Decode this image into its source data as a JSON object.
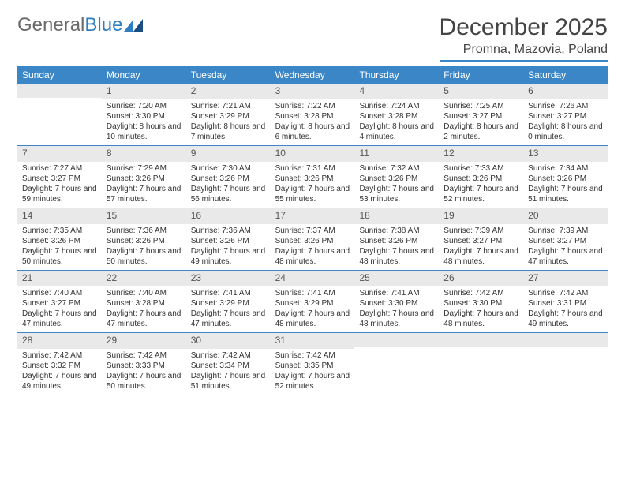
{
  "logo": {
    "text1": "General",
    "text2": "Blue"
  },
  "title": "December 2025",
  "location": "Promna, Mazovia, Poland",
  "colors": {
    "header_bg": "#3a86c7",
    "header_text": "#ffffff",
    "daynum_bg": "#e9e9e9",
    "text": "#333333",
    "rule": "#3a86c7"
  },
  "day_names": [
    "Sunday",
    "Monday",
    "Tuesday",
    "Wednesday",
    "Thursday",
    "Friday",
    "Saturday"
  ],
  "weeks": [
    [
      {
        "day": "",
        "sunrise": "",
        "sunset": "",
        "daylight": ""
      },
      {
        "day": "1",
        "sunrise": "Sunrise: 7:20 AM",
        "sunset": "Sunset: 3:30 PM",
        "daylight": "Daylight: 8 hours and 10 minutes."
      },
      {
        "day": "2",
        "sunrise": "Sunrise: 7:21 AM",
        "sunset": "Sunset: 3:29 PM",
        "daylight": "Daylight: 8 hours and 7 minutes."
      },
      {
        "day": "3",
        "sunrise": "Sunrise: 7:22 AM",
        "sunset": "Sunset: 3:28 PM",
        "daylight": "Daylight: 8 hours and 6 minutes."
      },
      {
        "day": "4",
        "sunrise": "Sunrise: 7:24 AM",
        "sunset": "Sunset: 3:28 PM",
        "daylight": "Daylight: 8 hours and 4 minutes."
      },
      {
        "day": "5",
        "sunrise": "Sunrise: 7:25 AM",
        "sunset": "Sunset: 3:27 PM",
        "daylight": "Daylight: 8 hours and 2 minutes."
      },
      {
        "day": "6",
        "sunrise": "Sunrise: 7:26 AM",
        "sunset": "Sunset: 3:27 PM",
        "daylight": "Daylight: 8 hours and 0 minutes."
      }
    ],
    [
      {
        "day": "7",
        "sunrise": "Sunrise: 7:27 AM",
        "sunset": "Sunset: 3:27 PM",
        "daylight": "Daylight: 7 hours and 59 minutes."
      },
      {
        "day": "8",
        "sunrise": "Sunrise: 7:29 AM",
        "sunset": "Sunset: 3:26 PM",
        "daylight": "Daylight: 7 hours and 57 minutes."
      },
      {
        "day": "9",
        "sunrise": "Sunrise: 7:30 AM",
        "sunset": "Sunset: 3:26 PM",
        "daylight": "Daylight: 7 hours and 56 minutes."
      },
      {
        "day": "10",
        "sunrise": "Sunrise: 7:31 AM",
        "sunset": "Sunset: 3:26 PM",
        "daylight": "Daylight: 7 hours and 55 minutes."
      },
      {
        "day": "11",
        "sunrise": "Sunrise: 7:32 AM",
        "sunset": "Sunset: 3:26 PM",
        "daylight": "Daylight: 7 hours and 53 minutes."
      },
      {
        "day": "12",
        "sunrise": "Sunrise: 7:33 AM",
        "sunset": "Sunset: 3:26 PM",
        "daylight": "Daylight: 7 hours and 52 minutes."
      },
      {
        "day": "13",
        "sunrise": "Sunrise: 7:34 AM",
        "sunset": "Sunset: 3:26 PM",
        "daylight": "Daylight: 7 hours and 51 minutes."
      }
    ],
    [
      {
        "day": "14",
        "sunrise": "Sunrise: 7:35 AM",
        "sunset": "Sunset: 3:26 PM",
        "daylight": "Daylight: 7 hours and 50 minutes."
      },
      {
        "day": "15",
        "sunrise": "Sunrise: 7:36 AM",
        "sunset": "Sunset: 3:26 PM",
        "daylight": "Daylight: 7 hours and 50 minutes."
      },
      {
        "day": "16",
        "sunrise": "Sunrise: 7:36 AM",
        "sunset": "Sunset: 3:26 PM",
        "daylight": "Daylight: 7 hours and 49 minutes."
      },
      {
        "day": "17",
        "sunrise": "Sunrise: 7:37 AM",
        "sunset": "Sunset: 3:26 PM",
        "daylight": "Daylight: 7 hours and 48 minutes."
      },
      {
        "day": "18",
        "sunrise": "Sunrise: 7:38 AM",
        "sunset": "Sunset: 3:26 PM",
        "daylight": "Daylight: 7 hours and 48 minutes."
      },
      {
        "day": "19",
        "sunrise": "Sunrise: 7:39 AM",
        "sunset": "Sunset: 3:27 PM",
        "daylight": "Daylight: 7 hours and 48 minutes."
      },
      {
        "day": "20",
        "sunrise": "Sunrise: 7:39 AM",
        "sunset": "Sunset: 3:27 PM",
        "daylight": "Daylight: 7 hours and 47 minutes."
      }
    ],
    [
      {
        "day": "21",
        "sunrise": "Sunrise: 7:40 AM",
        "sunset": "Sunset: 3:27 PM",
        "daylight": "Daylight: 7 hours and 47 minutes."
      },
      {
        "day": "22",
        "sunrise": "Sunrise: 7:40 AM",
        "sunset": "Sunset: 3:28 PM",
        "daylight": "Daylight: 7 hours and 47 minutes."
      },
      {
        "day": "23",
        "sunrise": "Sunrise: 7:41 AM",
        "sunset": "Sunset: 3:29 PM",
        "daylight": "Daylight: 7 hours and 47 minutes."
      },
      {
        "day": "24",
        "sunrise": "Sunrise: 7:41 AM",
        "sunset": "Sunset: 3:29 PM",
        "daylight": "Daylight: 7 hours and 48 minutes."
      },
      {
        "day": "25",
        "sunrise": "Sunrise: 7:41 AM",
        "sunset": "Sunset: 3:30 PM",
        "daylight": "Daylight: 7 hours and 48 minutes."
      },
      {
        "day": "26",
        "sunrise": "Sunrise: 7:42 AM",
        "sunset": "Sunset: 3:30 PM",
        "daylight": "Daylight: 7 hours and 48 minutes."
      },
      {
        "day": "27",
        "sunrise": "Sunrise: 7:42 AM",
        "sunset": "Sunset: 3:31 PM",
        "daylight": "Daylight: 7 hours and 49 minutes."
      }
    ],
    [
      {
        "day": "28",
        "sunrise": "Sunrise: 7:42 AM",
        "sunset": "Sunset: 3:32 PM",
        "daylight": "Daylight: 7 hours and 49 minutes."
      },
      {
        "day": "29",
        "sunrise": "Sunrise: 7:42 AM",
        "sunset": "Sunset: 3:33 PM",
        "daylight": "Daylight: 7 hours and 50 minutes."
      },
      {
        "day": "30",
        "sunrise": "Sunrise: 7:42 AM",
        "sunset": "Sunset: 3:34 PM",
        "daylight": "Daylight: 7 hours and 51 minutes."
      },
      {
        "day": "31",
        "sunrise": "Sunrise: 7:42 AM",
        "sunset": "Sunset: 3:35 PM",
        "daylight": "Daylight: 7 hours and 52 minutes."
      },
      {
        "day": "",
        "sunrise": "",
        "sunset": "",
        "daylight": ""
      },
      {
        "day": "",
        "sunrise": "",
        "sunset": "",
        "daylight": ""
      },
      {
        "day": "",
        "sunrise": "",
        "sunset": "",
        "daylight": ""
      }
    ]
  ]
}
